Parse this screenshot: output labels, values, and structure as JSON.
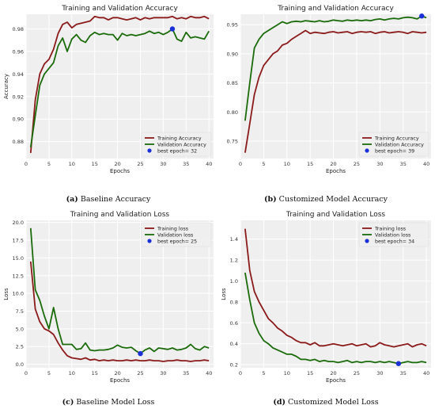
{
  "captions": [
    {
      "letter": "(a)",
      "text": "Baseline Accuracy"
    },
    {
      "letter": "(b)",
      "text": "Customized Model Accuracy"
    },
    {
      "letter": "(c)",
      "text": "Baseline Model Loss"
    },
    {
      "letter": "(d)",
      "text": "Customized Model Loss"
    }
  ],
  "chart_data": [
    {
      "type": "line",
      "title": "Training and Validation Accuracy",
      "xlabel": "Epochs",
      "ylabel": "Accuracy",
      "xlim": [
        0,
        41
      ],
      "ylim": [
        0.865,
        0.993
      ],
      "xticks": [
        0,
        5,
        10,
        15,
        20,
        25,
        30,
        35,
        40
      ],
      "yticks": [
        0.88,
        0.9,
        0.92,
        0.94,
        0.96,
        0.98
      ],
      "ytick_labels": [
        "0.88",
        "0.90",
        "0.92",
        "0.94",
        "0.96",
        "0.98"
      ],
      "grid": true,
      "legend_position": "lower-right",
      "x": [
        1,
        2,
        3,
        4,
        5,
        6,
        7,
        8,
        9,
        10,
        11,
        12,
        13,
        14,
        15,
        16,
        17,
        18,
        19,
        20,
        21,
        22,
        23,
        24,
        25,
        26,
        27,
        28,
        29,
        30,
        31,
        32,
        33,
        34,
        35,
        36,
        37,
        38,
        39,
        40
      ],
      "series": [
        {
          "name": "Training Accuracy",
          "color": "#8b1a1a",
          "values": [
            0.87,
            0.917,
            0.94,
            0.949,
            0.953,
            0.962,
            0.976,
            0.984,
            0.986,
            0.981,
            0.984,
            0.985,
            0.986,
            0.987,
            0.991,
            0.99,
            0.99,
            0.988,
            0.99,
            0.99,
            0.989,
            0.988,
            0.989,
            0.99,
            0.988,
            0.99,
            0.989,
            0.99,
            0.99,
            0.99,
            0.99,
            0.991,
            0.989,
            0.99,
            0.989,
            0.991,
            0.99,
            0.99,
            0.991,
            0.989
          ]
        },
        {
          "name": "Validation Accuracy",
          "color": "#1a6b0a",
          "values": [
            0.875,
            0.903,
            0.93,
            0.94,
            0.945,
            0.95,
            0.965,
            0.972,
            0.96,
            0.971,
            0.975,
            0.97,
            0.968,
            0.974,
            0.977,
            0.975,
            0.976,
            0.975,
            0.975,
            0.97,
            0.976,
            0.974,
            0.975,
            0.974,
            0.975,
            0.976,
            0.978,
            0.976,
            0.977,
            0.975,
            0.977,
            0.98,
            0.971,
            0.969,
            0.977,
            0.972,
            0.973,
            0.972,
            0.971,
            0.978
          ]
        }
      ],
      "best_point": {
        "label": "best epoch= 32",
        "x": 32,
        "y": 0.98,
        "color": "#1a2fd6"
      }
    },
    {
      "type": "line",
      "title": "Training and Validation Accuracy",
      "xlabel": "Epochs",
      "ylabel": "",
      "xlim": [
        0,
        41
      ],
      "ylim": [
        0.72,
        0.968
      ],
      "xticks": [
        0,
        5,
        10,
        15,
        20,
        25,
        30,
        35,
        40
      ],
      "yticks": [
        0.75,
        0.8,
        0.85,
        0.9,
        0.95
      ],
      "ytick_labels": [
        "0.75",
        "0.80",
        "0.85",
        "0.90",
        "0.95"
      ],
      "grid": true,
      "legend_position": "lower-right",
      "x": [
        1,
        2,
        3,
        4,
        5,
        6,
        7,
        8,
        9,
        10,
        11,
        12,
        13,
        14,
        15,
        16,
        17,
        18,
        19,
        20,
        21,
        22,
        23,
        24,
        25,
        26,
        27,
        28,
        29,
        30,
        31,
        32,
        33,
        34,
        35,
        36,
        37,
        38,
        39,
        40
      ],
      "series": [
        {
          "name": "Training Accuracy",
          "color": "#8b1a1a",
          "values": [
            0.73,
            0.78,
            0.83,
            0.86,
            0.88,
            0.89,
            0.9,
            0.905,
            0.915,
            0.918,
            0.925,
            0.93,
            0.935,
            0.94,
            0.935,
            0.937,
            0.936,
            0.935,
            0.937,
            0.938,
            0.936,
            0.937,
            0.938,
            0.935,
            0.937,
            0.938,
            0.937,
            0.938,
            0.935,
            0.937,
            0.938,
            0.936,
            0.937,
            0.938,
            0.937,
            0.935,
            0.938,
            0.937,
            0.936,
            0.937
          ]
        },
        {
          "name": "Validation Accuracy",
          "color": "#1a6b0a",
          "values": [
            0.785,
            0.85,
            0.91,
            0.925,
            0.935,
            0.94,
            0.945,
            0.95,
            0.955,
            0.952,
            0.955,
            0.956,
            0.955,
            0.957,
            0.956,
            0.955,
            0.957,
            0.955,
            0.956,
            0.958,
            0.957,
            0.956,
            0.958,
            0.957,
            0.958,
            0.957,
            0.958,
            0.957,
            0.959,
            0.96,
            0.958,
            0.96,
            0.961,
            0.96,
            0.962,
            0.963,
            0.962,
            0.96,
            0.965,
            0.962
          ]
        }
      ],
      "best_point": {
        "label": "best epoch= 39",
        "x": 39,
        "y": 0.965,
        "color": "#1a2fd6"
      }
    },
    {
      "type": "line",
      "title": "Training and Validation Loss",
      "xlabel": "Epochs",
      "ylabel": "Loss",
      "xlim": [
        0,
        41
      ],
      "ylim": [
        -0.5,
        20.3
      ],
      "xticks": [
        0,
        5,
        10,
        15,
        20,
        25,
        30,
        35,
        40
      ],
      "yticks": [
        0.0,
        2.5,
        5.0,
        7.5,
        10.0,
        12.5,
        15.0,
        17.5,
        20.0
      ],
      "ytick_labels": [
        "0.0",
        "2.5",
        "5.0",
        "7.5",
        "10.0",
        "12.5",
        "15.0",
        "17.5",
        "20.0"
      ],
      "grid": true,
      "legend_position": "top-right",
      "x": [
        1,
        2,
        3,
        4,
        5,
        6,
        7,
        8,
        9,
        10,
        11,
        12,
        13,
        14,
        15,
        16,
        17,
        18,
        19,
        20,
        21,
        22,
        23,
        24,
        25,
        26,
        27,
        28,
        29,
        30,
        31,
        32,
        33,
        34,
        35,
        36,
        37,
        38,
        39,
        40
      ],
      "series": [
        {
          "name": "Training loss",
          "color": "#8b1a1a",
          "values": [
            14.5,
            7.8,
            6.0,
            5.0,
            4.7,
            4.2,
            3.0,
            2.0,
            1.2,
            0.9,
            0.8,
            0.7,
            0.9,
            0.6,
            0.7,
            0.5,
            0.6,
            0.5,
            0.6,
            0.5,
            0.5,
            0.6,
            0.5,
            0.6,
            0.5,
            0.5,
            0.6,
            0.5,
            0.5,
            0.4,
            0.5,
            0.5,
            0.6,
            0.5,
            0.5,
            0.4,
            0.5,
            0.5,
            0.6,
            0.5
          ]
        },
        {
          "name": "Validation loss",
          "color": "#1a6b0a",
          "values": [
            19.2,
            10.5,
            9.0,
            6.8,
            5.0,
            8.0,
            5.0,
            2.8,
            2.8,
            2.8,
            2.1,
            2.2,
            3.0,
            2.0,
            1.9,
            2.0,
            2.0,
            2.1,
            2.3,
            2.7,
            2.4,
            2.3,
            2.4,
            1.9,
            1.5,
            2.0,
            2.3,
            1.8,
            2.3,
            2.2,
            2.1,
            2.3,
            2.0,
            2.1,
            2.3,
            2.8,
            2.2,
            2.0,
            2.5,
            2.3
          ]
        }
      ],
      "best_point": {
        "label": "best epoch= 25",
        "x": 25,
        "y": 1.5,
        "color": "#1a2fd6"
      }
    },
    {
      "type": "line",
      "title": "Training and Validation Loss",
      "xlabel": "Epochs",
      "ylabel": "Loss",
      "xlim": [
        0,
        41
      ],
      "ylim": [
        0.17,
        1.58
      ],
      "xticks": [
        0,
        5,
        10,
        15,
        20,
        25,
        30,
        35,
        40
      ],
      "yticks": [
        0.2,
        0.4,
        0.6,
        0.8,
        1.0,
        1.2,
        1.4
      ],
      "ytick_labels": [
        "0.2",
        "0.4",
        "0.6",
        "0.8",
        "1.0",
        "1.2",
        "1.4"
      ],
      "grid": true,
      "legend_position": "top-right",
      "x": [
        1,
        2,
        3,
        4,
        5,
        6,
        7,
        8,
        9,
        10,
        11,
        12,
        13,
        14,
        15,
        16,
        17,
        18,
        19,
        20,
        21,
        22,
        23,
        24,
        25,
        26,
        27,
        28,
        29,
        30,
        31,
        32,
        33,
        34,
        35,
        36,
        37,
        38,
        39,
        40
      ],
      "series": [
        {
          "name": "Training loss",
          "color": "#8b1a1a",
          "values": [
            1.5,
            1.1,
            0.9,
            0.8,
            0.72,
            0.64,
            0.6,
            0.55,
            0.52,
            0.48,
            0.46,
            0.43,
            0.41,
            0.41,
            0.39,
            0.41,
            0.38,
            0.38,
            0.39,
            0.4,
            0.39,
            0.38,
            0.39,
            0.4,
            0.38,
            0.39,
            0.4,
            0.37,
            0.38,
            0.41,
            0.39,
            0.38,
            0.37,
            0.38,
            0.39,
            0.4,
            0.37,
            0.39,
            0.4,
            0.38
          ]
        },
        {
          "name": "Validation loss",
          "color": "#1a6b0a",
          "values": [
            1.08,
            0.82,
            0.6,
            0.5,
            0.43,
            0.4,
            0.36,
            0.34,
            0.32,
            0.3,
            0.3,
            0.28,
            0.25,
            0.25,
            0.24,
            0.25,
            0.23,
            0.24,
            0.23,
            0.23,
            0.22,
            0.23,
            0.24,
            0.22,
            0.23,
            0.22,
            0.23,
            0.23,
            0.22,
            0.23,
            0.22,
            0.23,
            0.22,
            0.21,
            0.22,
            0.23,
            0.22,
            0.22,
            0.23,
            0.22
          ]
        }
      ],
      "best_point": {
        "label": "best epoch= 34",
        "x": 34,
        "y": 0.21,
        "color": "#1a2fd6"
      }
    }
  ]
}
